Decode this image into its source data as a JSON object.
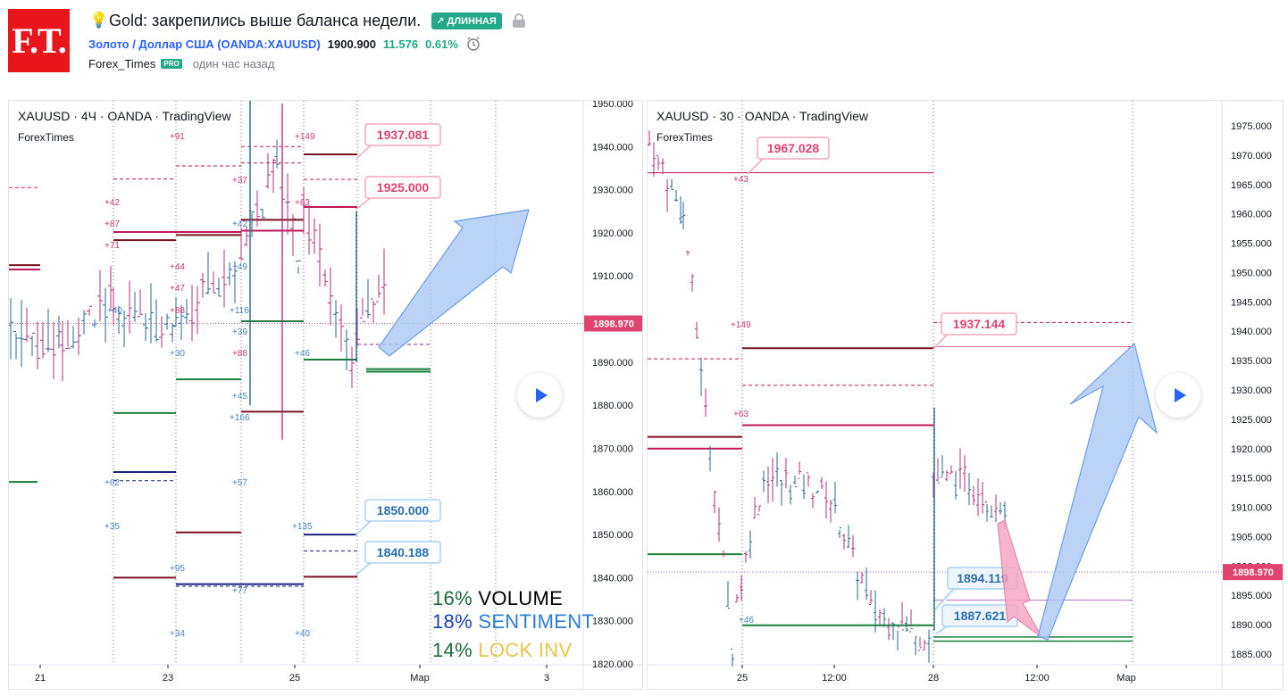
{
  "header": {
    "logo": "F.T.",
    "title": "Gold: закрепились выше баланса недели.",
    "badge": "↗ ДЛИННАЯ",
    "symbol_link": "Золото / Доллар США (OANDA:XAUUSD)",
    "price": "1900.900",
    "change": "11.576",
    "change_pct": "0.61%",
    "author": "Forex_Times",
    "author_badge": "PRO",
    "time_ago": "один час назад"
  },
  "icons": {
    "bulb": "lightbulb-icon",
    "lock": "lock-icon",
    "alarm": "alarm-clock-icon",
    "play": "play-icon"
  },
  "colors": {
    "up": "#22a989",
    "accent": "#2962ff",
    "price_tag": "#e0436f",
    "brand": "#e8161c"
  },
  "left_chart": {
    "legend": "XAUUSD · 4Ч · OANDA · TradingView",
    "sub": "ForexTimes",
    "current_price": "1898.970",
    "y_ticks": [
      "1950.000",
      "1940.000",
      "1930.000",
      "1920.000",
      "1910.000",
      "1900.000",
      "1890.000",
      "1880.000",
      "1870.000",
      "1860.000",
      "1850.000",
      "1840.000",
      "1830.000",
      "1820.000"
    ],
    "x_ticks": [
      "21",
      "23",
      "25",
      "Мар",
      "3"
    ],
    "callouts": [
      "1937.081",
      "1925.000",
      "1850.000",
      "1840.188"
    ],
    "small_labels": [
      "+91",
      "+149",
      "+37",
      "+63",
      "+42",
      "+87",
      "+71",
      "+42",
      "+44",
      "+47",
      "+88",
      "+40",
      "+30",
      "+49",
      "+116",
      "+39",
      "+88",
      "+46",
      "+45",
      "+166",
      "+62",
      "+57",
      "+35",
      "+135",
      "+95",
      "+77",
      "+34",
      "+40"
    ],
    "stats": [
      {
        "pct": "16%",
        "label": "VOLUME"
      },
      {
        "pct": "18%",
        "label": "SENTIMENT"
      },
      {
        "pct": "14%",
        "label": "LOCK INV"
      }
    ]
  },
  "right_chart": {
    "legend": "XAUUSD · 30 · OANDA · TradingView",
    "sub": "ForexTimes",
    "current_price": "1898.970",
    "y_ticks": [
      "1975.000",
      "1970.000",
      "1965.000",
      "1960.000",
      "1955.000",
      "1950.000",
      "1945.000",
      "1940.000",
      "1935.000",
      "1930.000",
      "1925.000",
      "1920.000",
      "1915.000",
      "1910.000",
      "1905.000",
      "1900.000",
      "1895.000",
      "1890.000",
      "1885.000"
    ],
    "x_ticks": [
      "25",
      "12:00",
      "28",
      "12:00",
      "Мар"
    ],
    "callouts": [
      "1967.028",
      "1937.144",
      "1894.119",
      "1887.621"
    ],
    "small_labels": [
      "+43",
      "+149",
      "+63",
      "+46"
    ]
  }
}
